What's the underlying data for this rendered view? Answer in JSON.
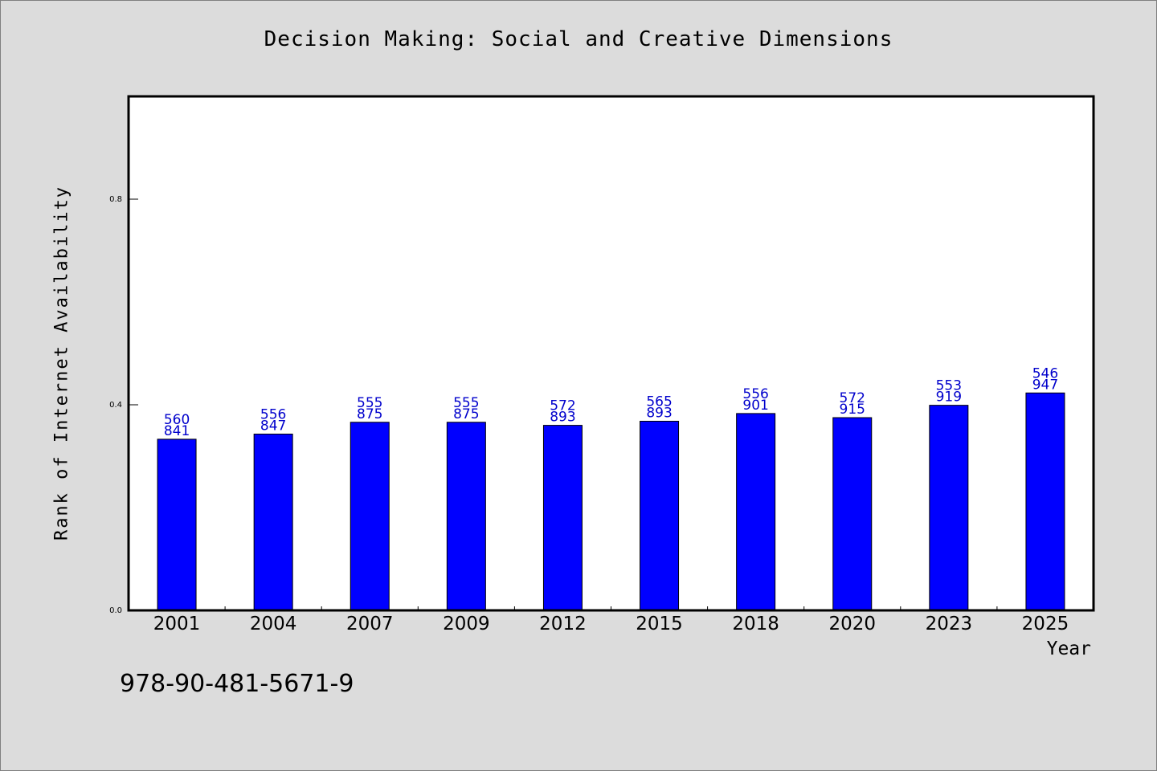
{
  "title": "Decision Making: Social and Creative Dimensions",
  "xlabel": "Year",
  "ylabel": "Rank of Internet Availability",
  "footer_code": "978-90-481-5671-9",
  "colors": {
    "bar": "#0000ff",
    "data_label": "#0000cc",
    "background": "#dcdcdc",
    "plot_background": "#ffffff"
  },
  "chart_data": {
    "type": "bar",
    "title": "Decision Making: Social and Creative Dimensions",
    "xlabel": "Year",
    "ylabel": "Rank of Internet Availability",
    "categories": [
      "2001",
      "2004",
      "2007",
      "2009",
      "2012",
      "2015",
      "2018",
      "2020",
      "2023",
      "2025"
    ],
    "values": [
      0.333,
      0.343,
      0.366,
      0.366,
      0.36,
      0.368,
      0.383,
      0.375,
      0.399,
      0.423
    ],
    "data_labels": [
      [
        "560",
        "841"
      ],
      [
        "556",
        "847"
      ],
      [
        "555",
        "875"
      ],
      [
        "555",
        "875"
      ],
      [
        "572",
        "893"
      ],
      [
        "565",
        "893"
      ],
      [
        "556",
        "901"
      ],
      [
        "572",
        "915"
      ],
      [
        "553",
        "919"
      ],
      [
        "546",
        "947"
      ]
    ],
    "yticks": [
      "0.0",
      "0.4",
      "0.8"
    ],
    "ylim": [
      0,
      1.0
    ],
    "grid": false,
    "legend": "none"
  }
}
